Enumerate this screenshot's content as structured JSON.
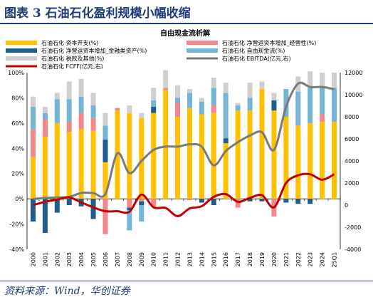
{
  "figure_title": "图表 3  石油石化盈利规模小幅收缩",
  "source_note": "资料来源：Wind，华创证券",
  "chart_data": {
    "type": "bar",
    "title": "自由现金流析解",
    "categories": [
      "2000",
      "2001",
      "2002",
      "2003",
      "2004",
      "2005",
      "2006",
      "2007",
      "2008",
      "2009",
      "2010",
      "2011",
      "2012",
      "2013",
      "2014",
      "2015",
      "2016",
      "2017",
      "2018",
      "2019",
      "2020",
      "2021",
      "2022",
      "2023",
      "2024",
      "25Q1"
    ],
    "stacked": true,
    "ylim_left": [
      -40,
      100
    ],
    "yticks_left": [
      "-40%",
      "-20%",
      "0%",
      "20%",
      "40%",
      "60%",
      "80%",
      "100%"
    ],
    "ylim_right": [
      -4000,
      12000
    ],
    "yticks_right": [
      "-4000",
      "-2000",
      "0",
      "2000",
      "4000",
      "6000",
      "8000",
      "10000",
      "12000"
    ],
    "series": [
      {
        "name": "石油石化 资本开支(%)",
        "axis": "left",
        "color": "#ffc000",
        "values": [
          33,
          49,
          60,
          53,
          55,
          54,
          29,
          70,
          68,
          64,
          68,
          86,
          65,
          72,
          67,
          68,
          44,
          70,
          70,
          87,
          70,
          65,
          58,
          60,
          61,
          61
        ]
      },
      {
        "name": "石油石化 净营运资本增加_经营性(%)",
        "axis": "left",
        "color": "#f4868c",
        "values": [
          22,
          14,
          0,
          8,
          13,
          10,
          -28,
          2,
          -7,
          -2,
          -6,
          2,
          11,
          -1,
          0,
          6,
          0,
          -7,
          0,
          0,
          -14,
          0,
          0,
          0,
          6,
          0
        ]
      },
      {
        "name": "石油石化 净营运资本增加_金融类资产(%)",
        "axis": "left",
        "color": "#1f5e8c",
        "values": [
          -18,
          -27,
          -11,
          -5,
          -6,
          -16,
          18,
          0,
          -2,
          -3,
          5,
          0,
          0,
          0,
          -3,
          -5,
          4,
          0,
          -2,
          -2,
          8,
          -3,
          -4,
          -4,
          0,
          0
        ]
      },
      {
        "name": "石油石化 自由现金流(%)",
        "axis": "left",
        "color": "#74b4d4",
        "values": [
          18,
          5,
          19,
          18,
          13,
          10,
          11,
          0,
          -16,
          -13,
          5,
          0,
          4,
          12,
          10,
          14,
          36,
          4,
          10,
          0,
          0,
          22,
          27,
          28,
          21,
          27
        ]
      },
      {
        "name": "石油石化 税款及其他(%)",
        "axis": "left",
        "color": "#cfcfcf",
        "values": [
          8,
          5,
          5,
          14,
          14,
          10,
          10,
          0,
          6,
          4,
          10,
          14,
          10,
          3,
          3,
          8,
          8,
          2,
          12,
          6,
          6,
          0,
          12,
          13,
          12,
          12
        ]
      },
      {
        "name": "石油石化 EBITDA(亿元,右)",
        "axis": "right",
        "type": "line",
        "color": "#7a7a7a",
        "values": [
          550,
          650,
          700,
          750,
          1100,
          1100,
          1000,
          4700,
          2900,
          4000,
          5000,
          5300,
          5300,
          5500,
          5300,
          3600,
          4900,
          5700,
          6300,
          6600,
          5000,
          8900,
          11000,
          10700,
          10700,
          10500
        ]
      },
      {
        "name": "石油石化 FCFF(亿元,右)",
        "axis": "right",
        "type": "line",
        "color": "#c00000",
        "values": [
          0,
          300,
          500,
          700,
          250,
          -200,
          -550,
          -550,
          -600,
          950,
          -200,
          -250,
          -1000,
          -300,
          -100,
          750,
          1000,
          300,
          650,
          900,
          -200,
          2000,
          2700,
          2800,
          2300,
          2800
        ]
      }
    ]
  }
}
